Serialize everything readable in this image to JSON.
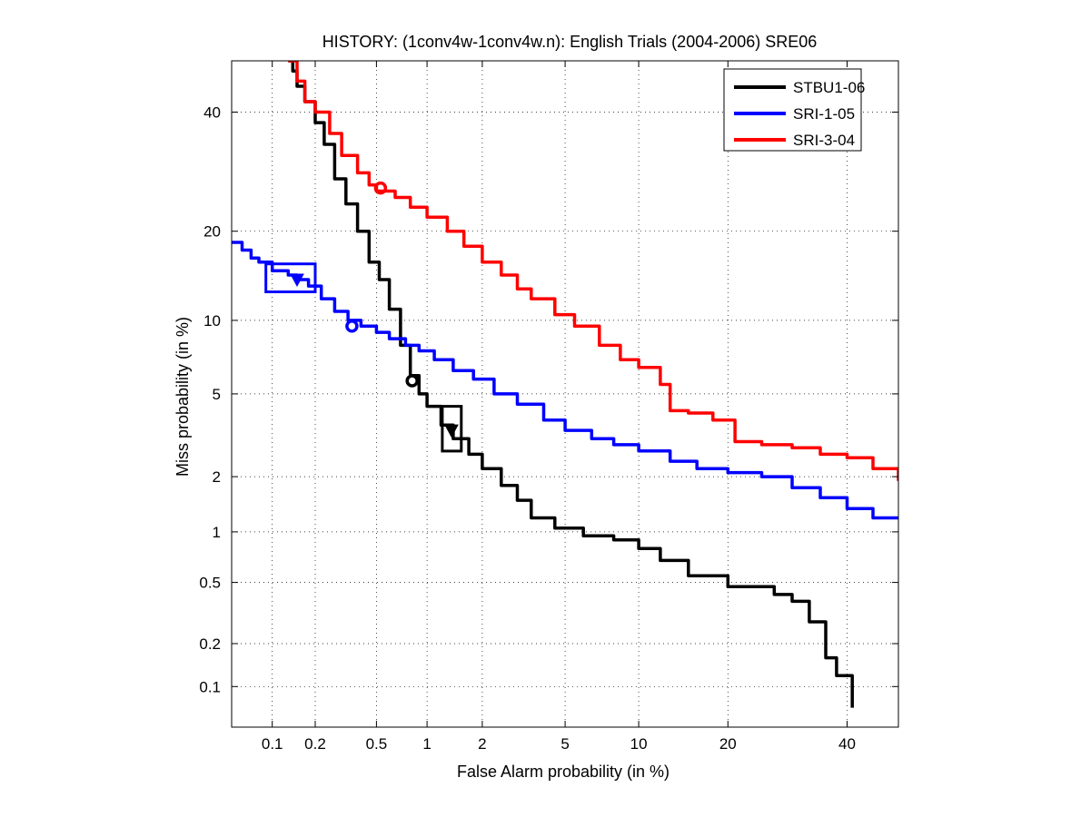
{
  "chart_data": {
    "type": "line",
    "title": "HISTORY: (1conv4w-1conv4w.n): English Trials (2004-2006) SRE06",
    "xlabel": "False Alarm probability (in %)",
    "ylabel": "Miss probability (in %)",
    "scale": "normal-deviate (DET)",
    "xlim": [
      0.05,
      50
    ],
    "ylim": [
      0.05,
      50
    ],
    "x_ticks": [
      0.1,
      0.2,
      0.5,
      1,
      2,
      5,
      10,
      20,
      40
    ],
    "x_tick_labels": [
      "0.1",
      "0.2",
      "0.5",
      "1",
      "2",
      "5",
      "10",
      "20",
      "40"
    ],
    "y_ticks": [
      0.1,
      0.2,
      0.5,
      1,
      2,
      5,
      10,
      20,
      40
    ],
    "y_tick_labels": [
      "0.1",
      "0.2",
      "0.5",
      "1",
      "2",
      "5",
      "10",
      "20",
      "40"
    ],
    "grid": true,
    "legend_position": "top-right",
    "series": [
      {
        "name": "STBU1-06",
        "color": "#000000",
        "x": [
          0.13,
          0.14,
          0.15,
          0.17,
          0.2,
          0.23,
          0.27,
          0.32,
          0.38,
          0.45,
          0.52,
          0.6,
          0.7,
          0.8,
          0.9,
          1.0,
          1.2,
          1.4,
          1.7,
          2.0,
          2.5,
          3.0,
          3.5,
          4.5,
          6.0,
          8.0,
          10.0,
          12.0,
          15.0,
          20.0,
          27.0,
          30.0,
          33.0,
          36.0,
          38.0,
          41.0
        ],
        "y": [
          50,
          48,
          45,
          42,
          38,
          34,
          28,
          24,
          20,
          16,
          14,
          11,
          8,
          6,
          5,
          4.4,
          3.6,
          3.1,
          2.6,
          2.2,
          1.8,
          1.5,
          1.2,
          1.05,
          0.95,
          0.9,
          0.8,
          0.68,
          0.55,
          0.47,
          0.42,
          0.38,
          0.28,
          0.16,
          0.12,
          0.07
        ]
      },
      {
        "name": "SRI-1-05",
        "color": "#0000ff",
        "x": [
          0.05,
          0.06,
          0.07,
          0.08,
          0.1,
          0.13,
          0.15,
          0.18,
          0.22,
          0.27,
          0.33,
          0.4,
          0.5,
          0.6,
          0.75,
          0.9,
          1.1,
          1.4,
          1.8,
          2.3,
          3.0,
          4.0,
          5.0,
          6.5,
          8.0,
          10.0,
          13.0,
          16.0,
          20.0,
          25.0,
          30.0,
          35.0,
          40.0,
          45.0,
          50.0
        ],
        "y": [
          18.5,
          17.5,
          16.5,
          16.0,
          15.0,
          14.5,
          14.0,
          13.3,
          12.0,
          10.8,
          10.0,
          9.5,
          9.0,
          8.5,
          8.0,
          7.6,
          7.0,
          6.3,
          5.8,
          5.0,
          4.5,
          3.8,
          3.4,
          3.1,
          2.9,
          2.7,
          2.4,
          2.2,
          2.1,
          2.0,
          1.75,
          1.55,
          1.35,
          1.2,
          1.2
        ]
      },
      {
        "name": "SRI-3-04",
        "color": "#ff0000",
        "x": [
          0.13,
          0.15,
          0.17,
          0.2,
          0.25,
          0.3,
          0.38,
          0.45,
          0.5,
          0.55,
          0.65,
          0.8,
          1.0,
          1.3,
          1.6,
          2.0,
          2.5,
          3.0,
          3.5,
          4.5,
          5.5,
          7.0,
          8.5,
          10.0,
          12.0,
          13.0,
          15.0,
          18.0,
          21.0,
          25.0,
          30.0,
          35.0,
          40.0,
          45.0,
          50.0
        ],
        "y": [
          50,
          46,
          42,
          40,
          36,
          32,
          29,
          27,
          26,
          26,
          25,
          23.5,
          22,
          20,
          18,
          16,
          14.5,
          13,
          12,
          10.5,
          9.5,
          8,
          7,
          6.5,
          5.5,
          4.2,
          4.1,
          3.8,
          3.0,
          2.9,
          2.8,
          2.6,
          2.5,
          2.2,
          1.9
        ]
      }
    ],
    "markers": [
      {
        "series": "STBU1-06",
        "kind": "circle",
        "x": 0.82,
        "y": 5.7
      },
      {
        "series": "STBU1-06",
        "kind": "triangle",
        "x": 1.37,
        "y": 3.4
      },
      {
        "series": "SRI-1-05",
        "kind": "circle",
        "x": 0.35,
        "y": 9.5
      },
      {
        "series": "SRI-1-05",
        "kind": "triangle",
        "x": 0.15,
        "y": 14.0
      },
      {
        "series": "SRI-3-04",
        "kind": "circle",
        "x": 0.53,
        "y": 26.5
      }
    ],
    "confidence_boxes": [
      {
        "series": "STBU1-06",
        "x": [
          1.22,
          1.55
        ],
        "y": [
          2.7,
          4.4
        ]
      },
      {
        "series": "SRI-1-05",
        "x": [
          0.09,
          0.2
        ],
        "y": [
          12.7,
          15.8
        ]
      }
    ]
  }
}
